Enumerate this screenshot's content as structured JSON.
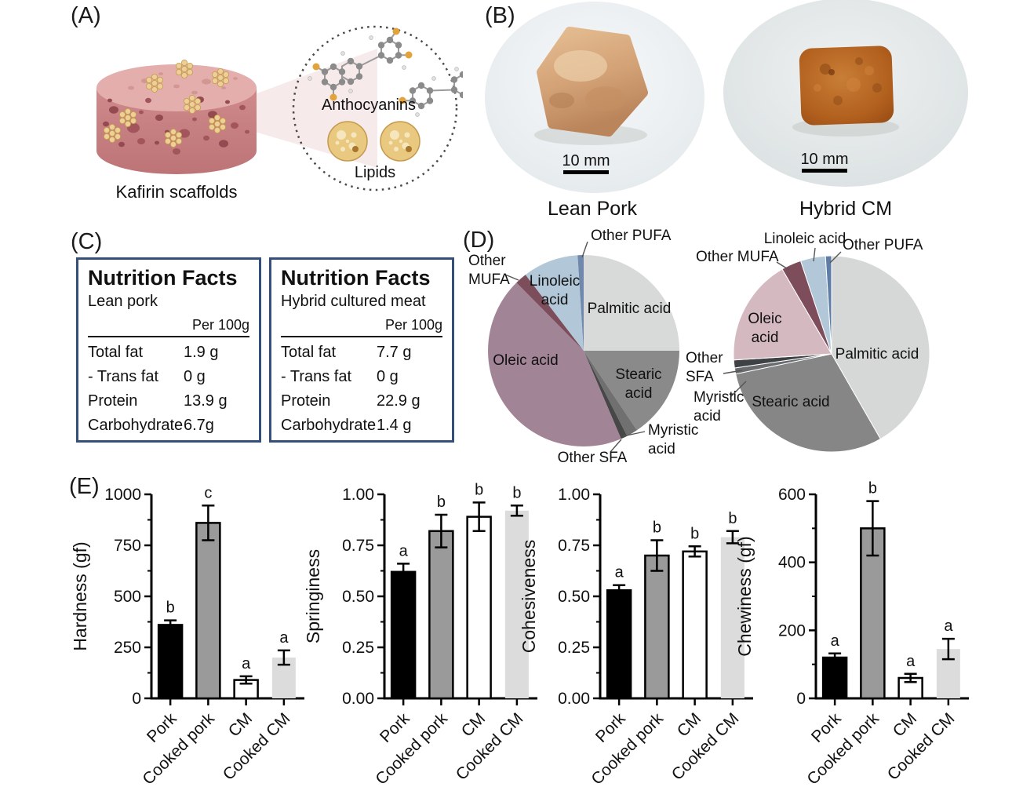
{
  "panel_labels": {
    "a": "(A)",
    "b": "(B)",
    "c": "(C)",
    "d": "(D)",
    "e": "(E)"
  },
  "panel_a": {
    "scaffold_caption": "Kafirin scaffolds",
    "molecule_label": "Anthocyanins",
    "lipids_label": "Lipids"
  },
  "panel_b": {
    "photos": [
      {
        "caption": "Lean Pork",
        "scale_bar": "10 mm"
      },
      {
        "caption": "Hybrid CM",
        "scale_bar": "10 mm"
      }
    ]
  },
  "panel_c": {
    "tables": [
      {
        "title": "Nutrition Facts",
        "subtitle": "Lean pork",
        "per_label": "Per 100g",
        "rows": [
          {
            "name": "Total fat",
            "value": "1.9 g"
          },
          {
            "name": "- Trans fat",
            "value": "0 g"
          },
          {
            "name": "Protein",
            "value": "13.9 g"
          },
          {
            "name": "Carbohydrate",
            "value": "6.7g"
          }
        ]
      },
      {
        "title": "Nutrition Facts",
        "subtitle": "Hybrid cultured meat",
        "per_label": "Per 100g",
        "rows": [
          {
            "name": "Total fat",
            "value": "7.7 g"
          },
          {
            "name": "- Trans fat",
            "value": "0 g"
          },
          {
            "name": "Protein",
            "value": "22.9 g"
          },
          {
            "name": "Carbohydrate",
            "value": "1.4 g"
          }
        ]
      }
    ]
  },
  "chart_data": [
    {
      "id": "pie-left",
      "type": "pie",
      "start_angle": 0,
      "direction": "clockwise",
      "separators": false,
      "slices": [
        {
          "name": "Palmitic acid",
          "value": 25.0,
          "color": "#d8dad9",
          "label": {
            "lines": [
              "Palmitic acid"
            ],
            "x": 214,
            "y": 111,
            "anchor": "middle"
          }
        },
        {
          "name": "Stearic acid",
          "value": 15.6,
          "color": "#8a8a8a",
          "label": {
            "lines": [
              "Stearic",
              "acid"
            ],
            "x": 226,
            "y": 195,
            "anchor": "middle"
          }
        },
        {
          "name": "Myristic acid",
          "value": 1.9,
          "color": "#707070",
          "label": {
            "lines": [
              "Myristic",
              "acid"
            ],
            "x": 238,
            "y": 266,
            "anchor": "start"
          },
          "leader": [
            [
              206,
              268
            ],
            [
              234,
              262
            ]
          ]
        },
        {
          "name": "Other SFA",
          "value": 1.1,
          "color": "#474747",
          "label": {
            "lines": [
              "Other SFA"
            ],
            "x": 167,
            "y": 301,
            "anchor": "middle"
          },
          "leader": [
            [
              204,
              272
            ],
            [
              190,
              288
            ]
          ]
        },
        {
          "name": "Oleic acid",
          "value": 44.0,
          "color": "#a28497",
          "label": {
            "lines": [
              "Oleic acid"
            ],
            "x": 82,
            "y": 177,
            "anchor": "middle"
          }
        },
        {
          "name": "Other MUFA",
          "value": 2.0,
          "color": "#7c4e5c",
          "label": {
            "lines": [
              "Other",
              "MUFA"
            ],
            "x": 9,
            "y": 50,
            "anchor": "start"
          },
          "leader": [
            [
              56,
              62
            ],
            [
              73,
              69
            ]
          ]
        },
        {
          "name": "Linoleic acid",
          "value": 9.4,
          "color": "#b2c8d8",
          "label": {
            "lines": [
              "Linoleic",
              "acid"
            ],
            "x": 119,
            "y": 76,
            "anchor": "middle"
          }
        },
        {
          "name": "Other PUFA",
          "value": 1.0,
          "color": "#6f88ab",
          "label": {
            "lines": [
              "Other PUFA"
            ],
            "x": 165,
            "y": 18,
            "anchor": "start"
          },
          "leader": [
            [
              161,
              20
            ],
            [
              154,
              40
            ]
          ]
        }
      ]
    },
    {
      "id": "pie-right",
      "type": "pie",
      "start_angle": 0,
      "direction": "clockwise",
      "separators": true,
      "slices": [
        {
          "name": "Palmitic acid",
          "value": 41.7,
          "color": "#d6d8d7",
          "label": {
            "lines": [
              "Palmitic acid"
            ],
            "x": 252,
            "y": 171,
            "anchor": "middle"
          }
        },
        {
          "name": "Stearic acid",
          "value": 30.0,
          "color": "#868686",
          "label": {
            "lines": [
              "Stearic acid"
            ],
            "x": 142,
            "y": 232,
            "anchor": "middle"
          }
        },
        {
          "name": "Myristic acid",
          "value": 1.0,
          "color": "#6a6d70",
          "label": {
            "lines": [
              "Myristic",
              "acid"
            ],
            "x": 18,
            "y": 226,
            "anchor": "start"
          },
          "leader": [
            [
              66,
              219
            ],
            [
              85,
              200
            ]
          ]
        },
        {
          "name": "Other SFA",
          "value": 1.3,
          "color": "#3f4245",
          "label": {
            "lines": [
              "Other",
              "SFA"
            ],
            "x": 8,
            "y": 176,
            "anchor": "start"
          },
          "leader": [
            [
              56,
              190
            ],
            [
              80,
              186
            ]
          ]
        },
        {
          "name": "Oleic acid",
          "value": 17.6,
          "color": "#d5b9c1",
          "label": {
            "lines": [
              "Oleic",
              "acid"
            ],
            "x": 109,
            "y": 126,
            "anchor": "middle"
          }
        },
        {
          "name": "Other MUFA",
          "value": 3.3,
          "color": "#7e4d5b",
          "label": {
            "lines": [
              "Other MUFA"
            ],
            "x": 21,
            "y": 47,
            "anchor": "start"
          },
          "leader": [
            [
              124,
              48
            ],
            [
              140,
              58
            ]
          ]
        },
        {
          "name": "Linoleic acid",
          "value": 4.1,
          "color": "#b2c7d7",
          "label": {
            "lines": [
              "Linoleic acid"
            ],
            "x": 160,
            "y": 24,
            "anchor": "middle"
          },
          "leader": [
            [
              173,
              30
            ],
            [
              171,
              47
            ]
          ]
        },
        {
          "name": "Other PUFA",
          "value": 1.0,
          "color": "#5e7ca5",
          "label": {
            "lines": [
              "Other PUFA"
            ],
            "x": 208,
            "y": 32,
            "anchor": "start"
          },
          "leader": [
            [
              206,
              35
            ],
            [
              192,
              49
            ]
          ]
        }
      ]
    },
    {
      "id": "hardness",
      "type": "bar",
      "ylabel": "Hardness (gf)",
      "ylim": [
        0,
        1000
      ],
      "yticks": [
        0,
        250,
        500,
        750,
        1000
      ],
      "ytick_labels": [
        "0",
        "250",
        "500",
        "750",
        "1000"
      ],
      "categories": [
        "Pork",
        "Cooked pork",
        "CM",
        "Cooked CM"
      ],
      "values": [
        360,
        860,
        90,
        200
      ],
      "errors": [
        22,
        85,
        18,
        35
      ],
      "letters": [
        "b",
        "c",
        "a",
        "a"
      ],
      "colors": [
        "#000000",
        "#9a9a9a",
        "#ffffff",
        "#dcdcdc"
      ],
      "borders": [
        true,
        true,
        true,
        false
      ]
    },
    {
      "id": "springiness",
      "type": "bar",
      "ylabel": "Springiness",
      "ylim": [
        0,
        1
      ],
      "yticks": [
        0,
        0.25,
        0.5,
        0.75,
        1
      ],
      "ytick_labels": [
        "0.00",
        "0.25",
        "0.50",
        "0.75",
        "1.00"
      ],
      "categories": [
        "Pork",
        "Cooked pork",
        "CM",
        "Cooked CM"
      ],
      "values": [
        0.62,
        0.82,
        0.89,
        0.92
      ],
      "errors": [
        0.04,
        0.08,
        0.07,
        0.025
      ],
      "letters": [
        "a",
        "b",
        "b",
        "b"
      ],
      "colors": [
        "#000000",
        "#9a9a9a",
        "#ffffff",
        "#dcdcdc"
      ],
      "borders": [
        true,
        true,
        true,
        false
      ]
    },
    {
      "id": "cohesiveness",
      "type": "bar",
      "ylabel": "Cohesiveness",
      "ylim": [
        0,
        1
      ],
      "yticks": [
        0,
        0.25,
        0.5,
        0.75,
        1
      ],
      "ytick_labels": [
        "0.00",
        "0.25",
        "0.50",
        "0.75",
        "1.00"
      ],
      "categories": [
        "Pork",
        "Cooked pork",
        "CM",
        "Cooked CM"
      ],
      "values": [
        0.53,
        0.7,
        0.72,
        0.79
      ],
      "errors": [
        0.025,
        0.075,
        0.025,
        0.03
      ],
      "letters": [
        "a",
        "b",
        "b",
        "b"
      ],
      "colors": [
        "#000000",
        "#9a9a9a",
        "#ffffff",
        "#dcdcdc"
      ],
      "borders": [
        true,
        true,
        true,
        false
      ]
    },
    {
      "id": "chewiness",
      "type": "bar",
      "ylabel": "Chewiness (gf)",
      "ylim": [
        0,
        600
      ],
      "yticks": [
        0,
        200,
        400,
        600
      ],
      "ytick_labels": [
        "0",
        "200",
        "400",
        "600"
      ],
      "categories": [
        "Pork",
        "Cooked pork",
        "CM",
        "Cooked CM"
      ],
      "values": [
        120,
        500,
        60,
        145
      ],
      "errors": [
        12,
        80,
        12,
        30
      ],
      "letters": [
        "a",
        "b",
        "a",
        "a"
      ],
      "colors": [
        "#000000",
        "#9a9a9a",
        "#ffffff",
        "#dcdcdc"
      ],
      "borders": [
        true,
        true,
        true,
        false
      ]
    }
  ]
}
